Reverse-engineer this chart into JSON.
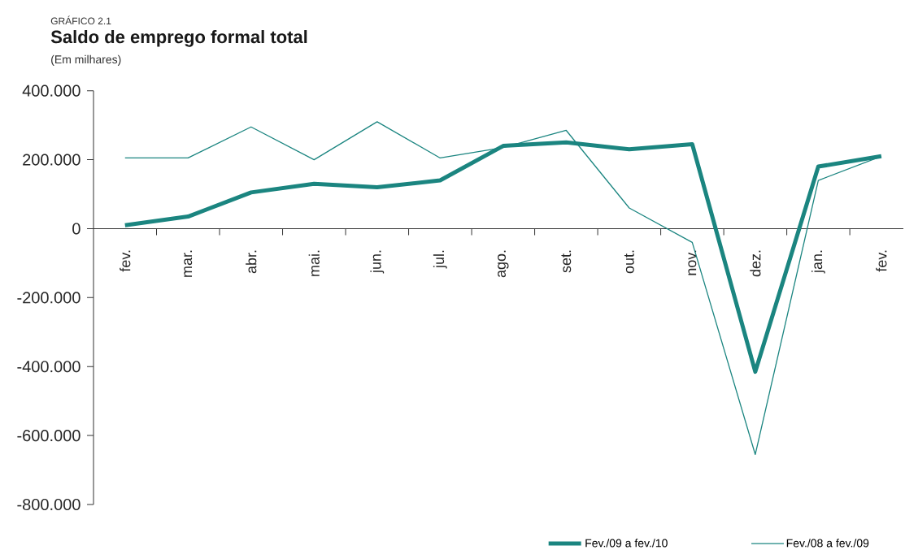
{
  "chart_data": {
    "type": "line",
    "title": "Saldo de emprego formal total",
    "subtitle": "(Em milhares)",
    "annotations": [
      "GRÁFICO 2.1"
    ],
    "categories": [
      "fev.",
      "mar.",
      "abr.",
      "mai.",
      "jun.",
      "jul.",
      "ago.",
      "set.",
      "out.",
      "nov.",
      "dez.",
      "jan.",
      "fev."
    ],
    "series": [
      {
        "name": "Fev./09 a fev./10",
        "color": "#1b8580",
        "values": [
          10,
          35,
          105,
          130,
          120,
          140,
          240,
          250,
          230,
          245,
          -415,
          180,
          210
        ]
      },
      {
        "name": "Fev./08 a fev./09",
        "color": "#1b8580",
        "values": [
          205,
          205,
          295,
          200,
          310,
          205,
          235,
          285,
          60,
          -40,
          -655,
          140,
          210
        ]
      }
    ],
    "ylim": [
      -800,
      400
    ],
    "yticks": [
      {
        "value": -800,
        "label": "-800.000"
      },
      {
        "value": -600,
        "label": "-600.000"
      },
      {
        "value": -400,
        "label": "-400.000"
      },
      {
        "value": -200,
        "label": "-200.000"
      },
      0,
      {
        "value": 200,
        "label": "200.000"
      },
      {
        "value": 400,
        "label": "400.000"
      }
    ],
    "legend": "bottom",
    "marker": "none",
    "line_style": "solid"
  }
}
